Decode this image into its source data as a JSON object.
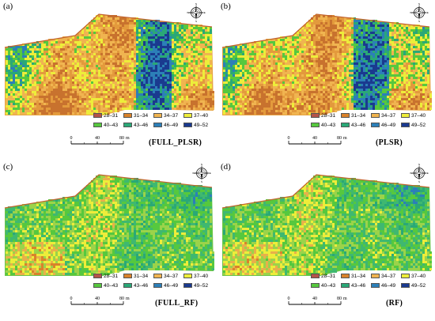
{
  "panels": [
    {
      "label": "(a)",
      "method": "(FULL_PLSR)",
      "palette": "warm"
    },
    {
      "label": "(b)",
      "method": "(PLSR)",
      "palette": "warm"
    },
    {
      "label": "(c)",
      "method": "(FULL_RF)",
      "palette": "green"
    },
    {
      "label": "(d)",
      "method": "(RF)",
      "palette": "green"
    }
  ],
  "compass": {
    "n": "N",
    "s": "S",
    "e": "E",
    "w": "W"
  },
  "legend": [
    {
      "range": "28–31",
      "color": "#b5534a"
    },
    {
      "range": "31–34",
      "color": "#d9822b"
    },
    {
      "range": "34–37",
      "color": "#f0b450"
    },
    {
      "range": "37–40",
      "color": "#eded3a"
    },
    {
      "range": "40–43",
      "color": "#56c83e"
    },
    {
      "range": "43–46",
      "color": "#2aa877"
    },
    {
      "range": "46–49",
      "color": "#2c7fb8"
    },
    {
      "range": "49–52",
      "color": "#1a3a8f"
    }
  ],
  "scale": {
    "tick0": "0",
    "tick1": "40",
    "tick2": "80",
    "unit": "m"
  }
}
